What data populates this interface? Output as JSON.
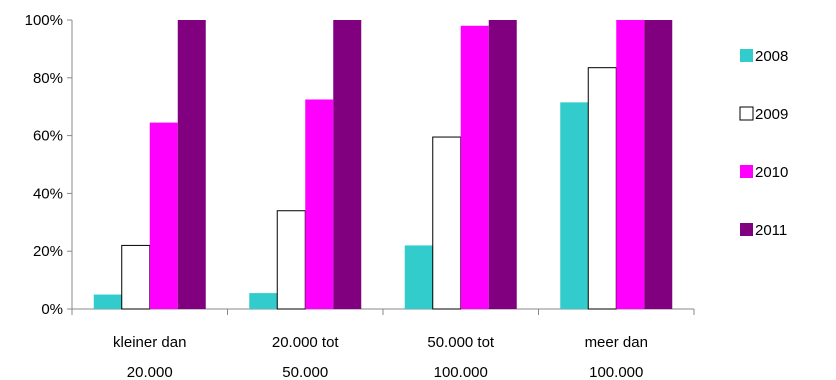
{
  "chart_data": {
    "type": "bar",
    "categories": [
      [
        "kleiner dan",
        "20.000"
      ],
      [
        "20.000 tot",
        "50.000"
      ],
      [
        "50.000 tot",
        "100.000"
      ],
      [
        "meer dan",
        "100.000"
      ]
    ],
    "series": [
      {
        "name": "2008",
        "color": "#33CCCC",
        "values": [
          0.05,
          0.055,
          0.22,
          0.715
        ]
      },
      {
        "name": "2009",
        "color": "#FFFFFF",
        "values": [
          0.22,
          0.34,
          0.595,
          0.835
        ]
      },
      {
        "name": "2010",
        "color": "#FF00FF",
        "values": [
          0.645,
          0.725,
          0.98,
          1.0
        ]
      },
      {
        "name": "2011",
        "color": "#800080",
        "values": [
          1.0,
          1.0,
          1.0,
          1.0
        ]
      }
    ],
    "y_ticks": [
      "0%",
      "20%",
      "40%",
      "60%",
      "80%",
      "100%"
    ],
    "ylim": [
      0,
      1
    ],
    "grid": false,
    "legend_position": "right"
  }
}
